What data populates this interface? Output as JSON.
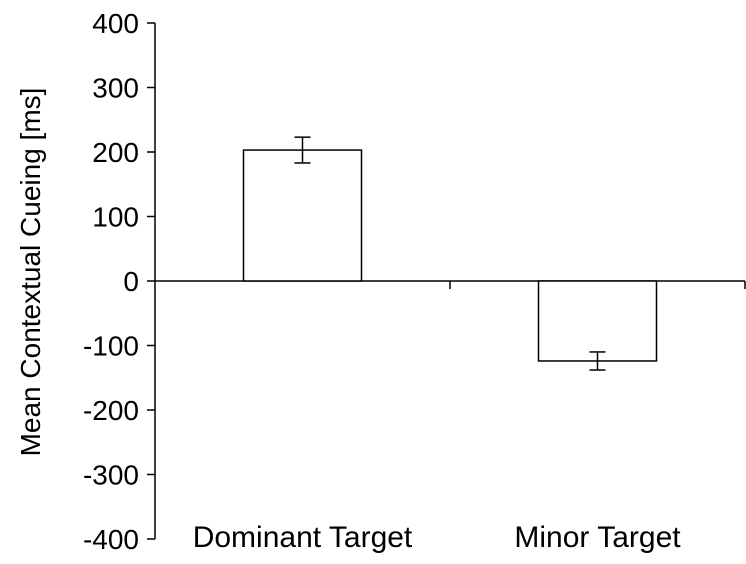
{
  "chart_data": {
    "type": "bar",
    "title": "",
    "xlabel": "",
    "ylabel": "Mean Contextual Cueing [ms]",
    "categories": [
      "Dominant Target",
      "Minor Target"
    ],
    "values": [
      203,
      -124
    ],
    "error": [
      20,
      14
    ],
    "ylim": [
      -400,
      400
    ],
    "yticks": [
      400,
      300,
      200,
      100,
      0,
      -100,
      -200,
      -300,
      -400
    ],
    "ytick_labels": [
      "400",
      "300",
      "200",
      "100",
      "0",
      "-100",
      "-200",
      "-300",
      "-400"
    ],
    "grid": false,
    "legend": "none",
    "bar_fill": "#ffffff",
    "bar_stroke": "#000000"
  }
}
